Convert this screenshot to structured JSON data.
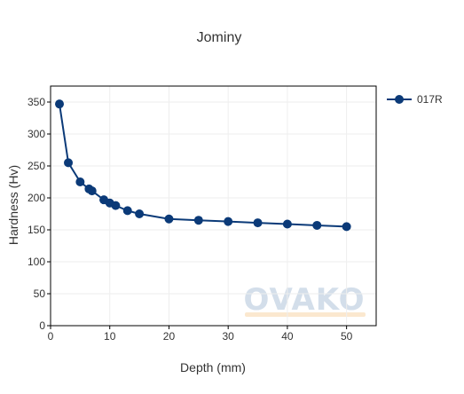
{
  "chart_data": {
    "type": "line",
    "title": "Jominy",
    "xlabel": "Depth (mm)",
    "ylabel": "Hardness (Hv)",
    "xlim": [
      0,
      55
    ],
    "ylim": [
      0,
      375
    ],
    "xticks": [
      0,
      10,
      20,
      30,
      40,
      50
    ],
    "yticks": [
      0,
      50,
      100,
      150,
      200,
      250,
      300,
      350
    ],
    "grid": true,
    "legend_position": "top-right",
    "series": [
      {
        "name": "017R",
        "color": "#0b3a78",
        "marker": "circle",
        "x": [
          1.5,
          3,
          5,
          6.5,
          7,
          9,
          10,
          11,
          13,
          15,
          20,
          25,
          30,
          35,
          40,
          45,
          50
        ],
        "y": [
          347,
          255,
          225,
          214,
          211,
          197,
          192,
          188,
          180,
          175,
          167,
          165,
          163,
          161,
          159,
          157,
          155
        ]
      }
    ]
  },
  "watermark": {
    "text": "OVAKO",
    "color": "#d3deea",
    "underline_color": "#fbe8cf"
  }
}
